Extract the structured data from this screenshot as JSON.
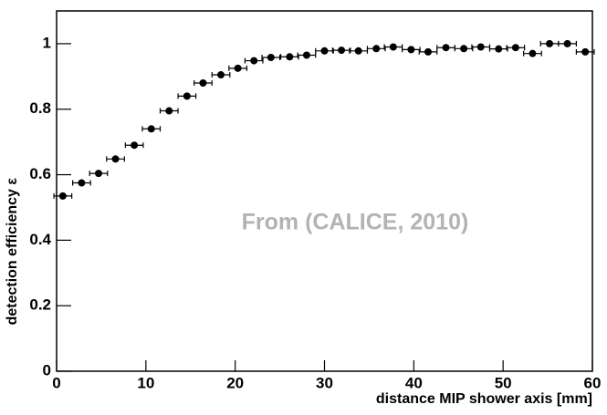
{
  "chart_data": {
    "type": "scatter",
    "x_label": "distance MIP shower axis [mm]",
    "y_label": "detection efficiency ε",
    "annotation": "From (CALICE, 2010)",
    "xlim": [
      0,
      60
    ],
    "xticks": [
      0,
      10,
      20,
      30,
      40,
      50,
      60
    ],
    "ylim": [
      0,
      1.1
    ],
    "yticks": [
      0,
      0.2,
      0.4,
      0.6,
      0.8,
      1
    ],
    "color": "#000000",
    "xerr": 1,
    "x": [
      0.7,
      2.8,
      4.7,
      6.6,
      8.7,
      10.6,
      12.6,
      14.6,
      16.4,
      18.4,
      20.3,
      22.1,
      24.0,
      26.1,
      28.0,
      30.0,
      31.9,
      33.8,
      35.8,
      37.7,
      39.7,
      41.6,
      43.6,
      45.6,
      47.5,
      49.5,
      51.4,
      53.3,
      55.2,
      57.2,
      59.2
    ],
    "values": [
      0.535,
      0.575,
      0.604,
      0.648,
      0.69,
      0.74,
      0.795,
      0.84,
      0.88,
      0.905,
      0.925,
      0.948,
      0.958,
      0.96,
      0.965,
      0.978,
      0.98,
      0.978,
      0.985,
      0.99,
      0.982,
      0.975,
      0.988,
      0.985,
      0.99,
      0.984,
      0.988,
      0.97,
      1.0,
      1.0,
      0.975
    ]
  }
}
